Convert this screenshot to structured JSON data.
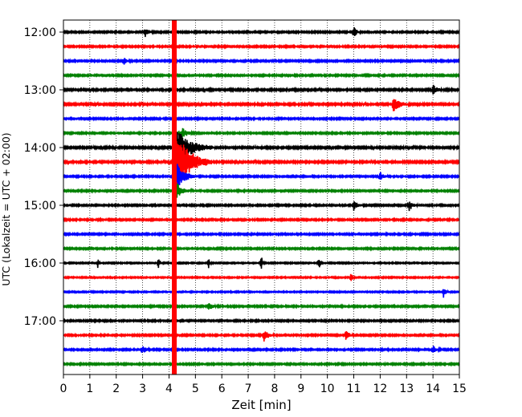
{
  "chart_data": {
    "type": "line",
    "title": "",
    "xlabel": "Zeit  [min]",
    "ylabel": "UTC (Lokalzeit = UTC + 02:00)",
    "xlim": [
      0,
      15
    ],
    "x_ticks": [
      0,
      1,
      2,
      3,
      4,
      5,
      6,
      7,
      8,
      9,
      10,
      11,
      12,
      13,
      14,
      15
    ],
    "y_ticks": [
      {
        "label": "12:00",
        "row": 0
      },
      {
        "label": "13:00",
        "row": 4
      },
      {
        "label": "14:00",
        "row": 8
      },
      {
        "label": "15:00",
        "row": 12
      },
      {
        "label": "16:00",
        "row": 16
      },
      {
        "label": "17:00",
        "row": 20
      }
    ],
    "grid": "vertical-dotted",
    "row_minutes": 15,
    "row_count": 24,
    "row_colors": [
      "#000000",
      "#ff0000",
      "#0000ff",
      "#008000"
    ],
    "rows": [
      {
        "start": "12:00",
        "color": "#000000",
        "noise": 0.1,
        "events": [
          {
            "t": 3.1,
            "amp": 2.0,
            "dur": 0.3
          },
          {
            "t": 11.0,
            "amp": 2.0,
            "dur": 0.3
          }
        ]
      },
      {
        "start": "12:15",
        "color": "#ff0000",
        "noise": 0.1,
        "events": []
      },
      {
        "start": "12:30",
        "color": "#0000ff",
        "noise": 0.1,
        "events": [
          {
            "t": 2.3,
            "amp": 1.5,
            "dur": 0.3
          }
        ]
      },
      {
        "start": "12:45",
        "color": "#008000",
        "noise": 0.1,
        "events": []
      },
      {
        "start": "13:00",
        "color": "#000000",
        "noise": 0.12,
        "events": [
          {
            "t": 14.0,
            "amp": 2.0,
            "dur": 0.4
          }
        ]
      },
      {
        "start": "13:15",
        "color": "#ff0000",
        "noise": 0.12,
        "events": [
          {
            "t": 12.5,
            "amp": 3.0,
            "dur": 0.6
          }
        ]
      },
      {
        "start": "13:30",
        "color": "#0000ff",
        "noise": 0.1,
        "events": []
      },
      {
        "start": "13:45",
        "color": "#008000",
        "noise": 0.1,
        "events": [
          {
            "t": 4.5,
            "amp": 2.0,
            "dur": 0.5
          }
        ]
      },
      {
        "start": "14:00",
        "color": "#000000",
        "noise": 0.12,
        "events": [
          {
            "t": 4.2,
            "amp": 8.0,
            "dur": 1.5
          }
        ]
      },
      {
        "start": "14:15",
        "color": "#ff0000",
        "noise": 0.12,
        "events": [
          {
            "t": 4.2,
            "amp": 14.0,
            "dur": 1.4
          }
        ]
      },
      {
        "start": "14:30",
        "color": "#0000ff",
        "noise": 0.1,
        "events": [
          {
            "t": 4.3,
            "amp": 5.0,
            "dur": 0.8
          },
          {
            "t": 12.0,
            "amp": 2.0,
            "dur": 0.3
          }
        ]
      },
      {
        "start": "14:45",
        "color": "#008000",
        "noise": 0.1,
        "events": [
          {
            "t": 4.3,
            "amp": 3.0,
            "dur": 0.6
          }
        ]
      },
      {
        "start": "15:00",
        "color": "#000000",
        "noise": 0.1,
        "events": [
          {
            "t": 11.0,
            "amp": 2.0,
            "dur": 0.4
          },
          {
            "t": 13.1,
            "amp": 2.0,
            "dur": 0.4
          }
        ]
      },
      {
        "start": "15:15",
        "color": "#ff0000",
        "noise": 0.1,
        "events": []
      },
      {
        "start": "15:30",
        "color": "#0000ff",
        "noise": 0.1,
        "events": []
      },
      {
        "start": "15:45",
        "color": "#008000",
        "noise": 0.1,
        "events": []
      },
      {
        "start": "16:00",
        "color": "#000000",
        "noise": 0.08,
        "events": [
          {
            "t": 1.3,
            "amp": 2.0,
            "dur": 0.1
          },
          {
            "t": 3.6,
            "amp": 2.5,
            "dur": 0.1
          },
          {
            "t": 5.5,
            "amp": 2.5,
            "dur": 0.1
          },
          {
            "t": 7.5,
            "amp": 3.0,
            "dur": 0.1
          },
          {
            "t": 9.7,
            "amp": 2.5,
            "dur": 0.1
          }
        ]
      },
      {
        "start": "16:15",
        "color": "#ff0000",
        "noise": 0.08,
        "events": [
          {
            "t": 10.9,
            "amp": 2.5,
            "dur": 0.15
          }
        ]
      },
      {
        "start": "16:30",
        "color": "#0000ff",
        "noise": 0.08,
        "events": [
          {
            "t": 14.4,
            "amp": 2.0,
            "dur": 0.3
          }
        ]
      },
      {
        "start": "16:45",
        "color": "#008000",
        "noise": 0.1,
        "events": [
          {
            "t": 5.5,
            "amp": 1.5,
            "dur": 0.4
          }
        ]
      },
      {
        "start": "17:00",
        "color": "#000000",
        "noise": 0.1,
        "events": []
      },
      {
        "start": "17:15",
        "color": "#ff0000",
        "noise": 0.1,
        "events": [
          {
            "t": 7.6,
            "amp": 2.5,
            "dur": 0.4
          },
          {
            "t": 10.7,
            "amp": 2.0,
            "dur": 0.3
          }
        ]
      },
      {
        "start": "17:30",
        "color": "#0000ff",
        "noise": 0.1,
        "events": [
          {
            "t": 3.0,
            "amp": 2.0,
            "dur": 0.3
          },
          {
            "t": 14.0,
            "amp": 1.5,
            "dur": 0.3
          }
        ]
      },
      {
        "start": "17:45",
        "color": "#008000",
        "noise": 0.1,
        "events": []
      }
    ],
    "highlight": {
      "t": 4.2,
      "color": "#ff0000"
    }
  }
}
